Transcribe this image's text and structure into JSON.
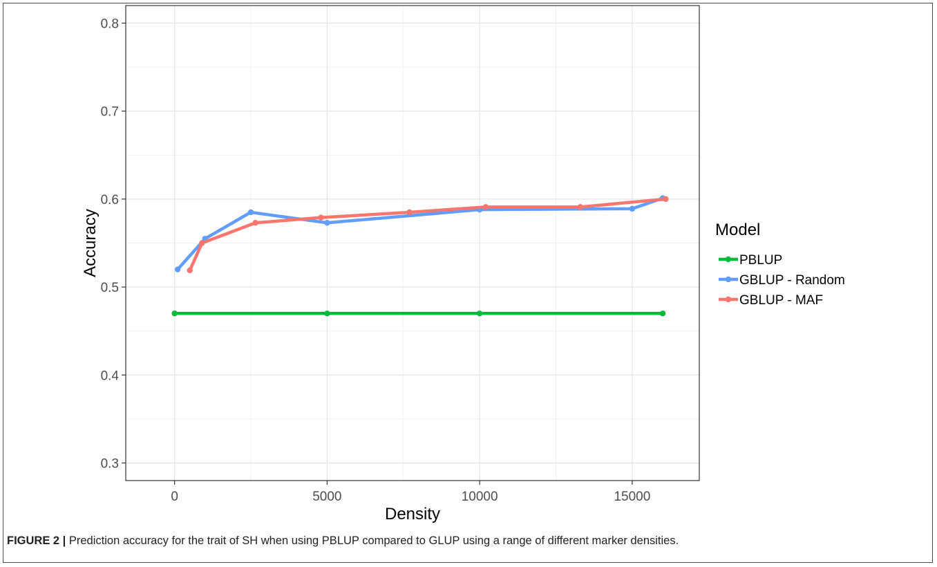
{
  "chart_data": {
    "type": "line",
    "title": "",
    "xlabel": "Density",
    "ylabel": "Accuracy",
    "xlim": [
      -1600,
      17200
    ],
    "ylim": [
      0.28,
      0.82
    ],
    "x_ticks": [
      0,
      5000,
      10000,
      15000
    ],
    "y_ticks": [
      0.3,
      0.4,
      0.5,
      0.6,
      0.7,
      0.8
    ],
    "grid": true,
    "legend": {
      "title": "Model",
      "placement": "right"
    },
    "series": [
      {
        "name": "PBLUP",
        "color": "#00ba38",
        "x": [
          0,
          5000,
          10000,
          16000
        ],
        "y": [
          0.47,
          0.47,
          0.47,
          0.47
        ]
      },
      {
        "name": "GBLUP - Random",
        "color": "#619cff",
        "x": [
          100,
          1000,
          2500,
          5000,
          10000,
          15000,
          16000
        ],
        "y": [
          0.52,
          0.555,
          0.585,
          0.573,
          0.588,
          0.589,
          0.601
        ]
      },
      {
        "name": "GBLUP - MAF",
        "color": "#f8766d",
        "x": [
          500,
          900,
          2650,
          4800,
          7700,
          10200,
          13300,
          16100
        ],
        "y": [
          0.519,
          0.55,
          0.573,
          0.579,
          0.585,
          0.591,
          0.591,
          0.6
        ]
      }
    ]
  },
  "caption": {
    "label": "FIGURE 2 |",
    "text": " Prediction accuracy for the trait of SH when using PBLUP compared to GLUP using a range of different marker densities."
  }
}
